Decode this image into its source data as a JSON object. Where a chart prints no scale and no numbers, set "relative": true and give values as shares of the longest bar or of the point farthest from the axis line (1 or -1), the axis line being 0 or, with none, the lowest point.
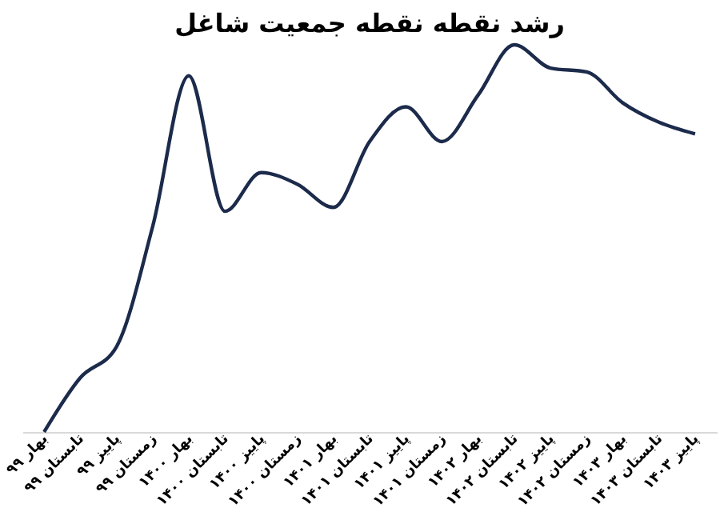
{
  "chart_data": {
    "type": "line",
    "title": "رشد نقطه نقطه جمعیت شاغل",
    "relative": true,
    "categories": [
      "بهار ۹۹",
      "تابستان ۹۹",
      "پاییز ۹۹",
      "زمستان ۹۹",
      "بهار ۱۴۰۰",
      "تابستان ۱۴۰۰",
      "پاییز ۱۴۰۰",
      "زمستان ۱۴۰۰",
      "بهار ۱۴۰۱",
      "تابستان ۱۴۰۱",
      "پاییز ۱۴۰۱",
      "زمستان ۱۴۰۱",
      "بهار ۱۴۰۲",
      "تابستان ۱۴۰۲",
      "پاییز ۱۴۰۲",
      "زمستان ۱۴۰۲",
      "بهار ۱۴۰۳",
      "تابستان ۱۴۰۳",
      "پاییز ۱۴۰۳"
    ],
    "series": [
      {
        "color": "#1c2b4b",
        "values": [
          0,
          0.14,
          0.22,
          0.53,
          0.92,
          0.57,
          0.67,
          0.64,
          0.58,
          0.75,
          0.84,
          0.75,
          0.87,
          1,
          0.94,
          0.93,
          0.85,
          0.8,
          0.77
        ]
      }
    ],
    "grid": false,
    "marker": "none",
    "line_style": "solid"
  }
}
